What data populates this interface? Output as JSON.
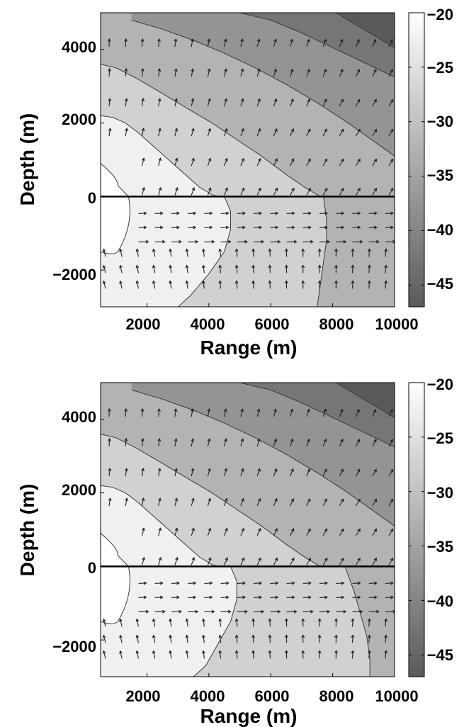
{
  "chart_data": [
    {
      "type": "contour",
      "xlabel": "Range (m)",
      "ylabel": "Depth (m)",
      "xlim": [
        500,
        10000
      ],
      "ylim": [
        -3000,
        5000
      ],
      "xticks": [
        "2000",
        "4000",
        "6000",
        "8000",
        "10000"
      ],
      "yticks": [
        "4000",
        "2000",
        "0",
        "−2000"
      ],
      "interface_depth": 0,
      "colorbar": {
        "range": [
          -47,
          -20
        ],
        "ticks": [
          "−20",
          "−25",
          "−30",
          "−35",
          "−40",
          "−45"
        ]
      },
      "upper_contours": [
        {
          "level": -25,
          "boundary_x": [
            500,
            900,
            1300,
            1700,
            2100,
            2500,
            2900,
            3300,
            3700,
            4100,
            4300
          ],
          "boundary_y": [
            2200,
            2150,
            2000,
            1750,
            1450,
            1150,
            850,
            550,
            250,
            50,
            0
          ]
        },
        {
          "level": -30,
          "boundary_x": [
            500,
            1000,
            1700,
            2500,
            3300,
            4100,
            4900,
            5700,
            6500,
            7100,
            7600
          ],
          "boundary_y": [
            3600,
            3500,
            3200,
            2800,
            2400,
            2000,
            1550,
            1100,
            600,
            250,
            0
          ]
        },
        {
          "level": -35,
          "boundary_x": [
            1500,
            2500,
            3500,
            4500,
            5500,
            6500,
            7500,
            8500,
            9500,
            10000
          ],
          "boundary_y": [
            4800,
            4550,
            4250,
            3900,
            3500,
            3050,
            2550,
            2000,
            1400,
            1100
          ]
        },
        {
          "level": -40,
          "boundary_x": [
            5000,
            6000,
            7000,
            8000,
            9000,
            10000
          ],
          "boundary_y": [
            5000,
            4800,
            4450,
            4050,
            3650,
            3250
          ]
        },
        {
          "level": -45,
          "boundary_x": [
            8100,
            8700,
            9300,
            10000
          ],
          "boundary_y": [
            5000,
            4700,
            4400,
            4050
          ]
        }
      ],
      "lower_contours": [
        {
          "level": -25,
          "boundary_x": [
            4500,
            4700,
            4700,
            4500,
            4000,
            3400,
            3000
          ],
          "boundary_y": [
            0,
            -400,
            -900,
            -1500,
            -2100,
            -2700,
            -3000
          ]
        },
        {
          "level": -30,
          "boundary_x": [
            7700,
            7800,
            7800,
            7700,
            7600,
            7500
          ],
          "boundary_y": [
            0,
            -600,
            -1200,
            -1800,
            -2400,
            -3000
          ]
        }
      ],
      "source_region": {
        "range_max": 1400,
        "depth_top": 300,
        "depth_bottom": -1500
      }
    },
    {
      "type": "contour",
      "xlabel": "Range (m)",
      "ylabel": "Depth (m)",
      "xlim": [
        500,
        10000
      ],
      "ylim": [
        -3000,
        5000
      ],
      "xticks": [
        "2000",
        "4000",
        "6000",
        "8000",
        "10000"
      ],
      "yticks": [
        "4000",
        "2000",
        "0",
        "−2000"
      ],
      "interface_depth": 0,
      "colorbar": {
        "range": [
          -47,
          -20
        ],
        "ticks": [
          "−20",
          "−25",
          "−30",
          "−35",
          "−40",
          "−45"
        ]
      },
      "upper_contours": [
        {
          "level": -25,
          "boundary_x": [
            500,
            900,
            1300,
            1700,
            2100,
            2500,
            2900,
            3300,
            3700,
            4100,
            4300
          ],
          "boundary_y": [
            2200,
            2150,
            2000,
            1750,
            1450,
            1150,
            850,
            550,
            250,
            50,
            0
          ]
        },
        {
          "level": -30,
          "boundary_x": [
            500,
            1000,
            1700,
            2500,
            3300,
            4100,
            4900,
            5700,
            6500,
            7100,
            7600
          ],
          "boundary_y": [
            3600,
            3500,
            3200,
            2800,
            2400,
            2000,
            1550,
            1100,
            600,
            250,
            0
          ]
        },
        {
          "level": -35,
          "boundary_x": [
            1500,
            2500,
            3500,
            4500,
            5500,
            6500,
            7500,
            8500,
            9500,
            10000
          ],
          "boundary_y": [
            4800,
            4550,
            4250,
            3900,
            3500,
            3050,
            2550,
            2000,
            1400,
            1100
          ]
        },
        {
          "level": -40,
          "boundary_x": [
            5000,
            6000,
            7000,
            8000,
            9000,
            10000
          ],
          "boundary_y": [
            5000,
            4800,
            4450,
            4050,
            3650,
            3250
          ]
        },
        {
          "level": -45,
          "boundary_x": [
            8100,
            8700,
            9300,
            10000
          ],
          "boundary_y": [
            5000,
            4700,
            4400,
            4050
          ]
        }
      ],
      "lower_contours": [
        {
          "level": -25,
          "boundary_x": [
            4700,
            4900,
            4900,
            4700,
            4300,
            3900,
            3500
          ],
          "boundary_y": [
            0,
            -400,
            -900,
            -1500,
            -2100,
            -2700,
            -3000
          ]
        },
        {
          "level": -30,
          "boundary_x": [
            8400,
            8700,
            8900,
            9100,
            9200,
            9200
          ],
          "boundary_y": [
            0,
            -700,
            -1300,
            -1900,
            -2500,
            -3000
          ]
        }
      ],
      "source_region": {
        "range_max": 1400,
        "depth_top": 300,
        "depth_bottom": -1500
      }
    }
  ],
  "colors": {
    "colormap_light": "#ffffff",
    "colormap_dark": "#5a5a5a",
    "contour_line": "#3a3a3a",
    "arrow": "#222222",
    "interface": "#000000"
  }
}
